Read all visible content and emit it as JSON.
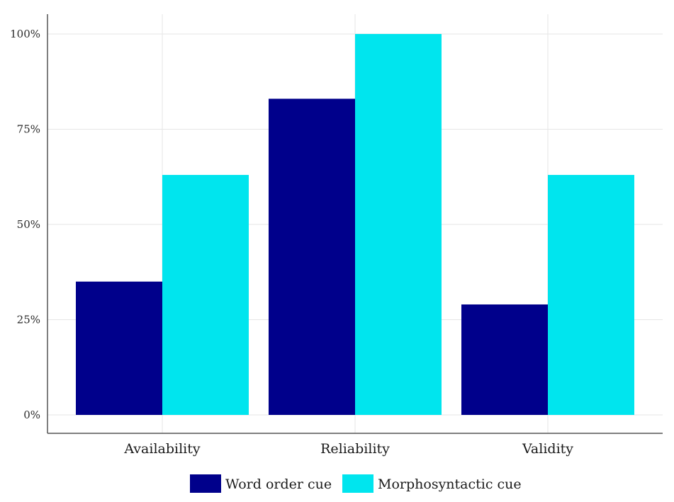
{
  "chart_data": {
    "type": "bar",
    "categories": [
      "Availability",
      "Reliability",
      "Validity"
    ],
    "series": [
      {
        "name": "Word order cue",
        "values": [
          35,
          83,
          29
        ],
        "color": "#00008B"
      },
      {
        "name": "Morphosyntactic cue",
        "values": [
          63,
          100,
          63
        ],
        "color": "#00E5EE"
      }
    ],
    "ylim": [
      0,
      100
    ],
    "yticks": [
      {
        "value": 0,
        "label": "0%"
      },
      {
        "value": 25,
        "label": "25%"
      },
      {
        "value": 50,
        "label": "50%"
      },
      {
        "value": 75,
        "label": "75%"
      },
      {
        "value": 100,
        "label": "100%"
      }
    ],
    "grid": true,
    "legend_position": "bottom",
    "title": "",
    "xlabel": "",
    "ylabel": ""
  }
}
